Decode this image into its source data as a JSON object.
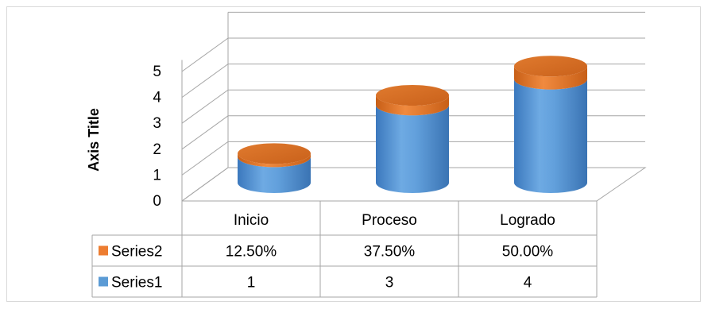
{
  "chart_data": {
    "type": "bar",
    "style": "3d-cylinder",
    "categories": [
      "Inicio",
      "Proceso",
      "Logrado"
    ],
    "series": [
      {
        "name": "Series2",
        "values": [
          0.125,
          0.375,
          0.5
        ],
        "labels": [
          "12.50%",
          "37.50%",
          "50.00%"
        ],
        "color": "#ed7d31"
      },
      {
        "name": "Series1",
        "values": [
          1,
          3,
          4
        ],
        "labels": [
          "1",
          "3",
          "4"
        ],
        "color": "#5b9bd5"
      }
    ],
    "stacked": true,
    "ylabel": "Axis Title",
    "ylim": [
      0,
      5
    ],
    "yticks": [
      "0",
      "1",
      "2",
      "3",
      "4",
      "5"
    ],
    "grid": true,
    "data_table": true,
    "legend": "data-table"
  }
}
